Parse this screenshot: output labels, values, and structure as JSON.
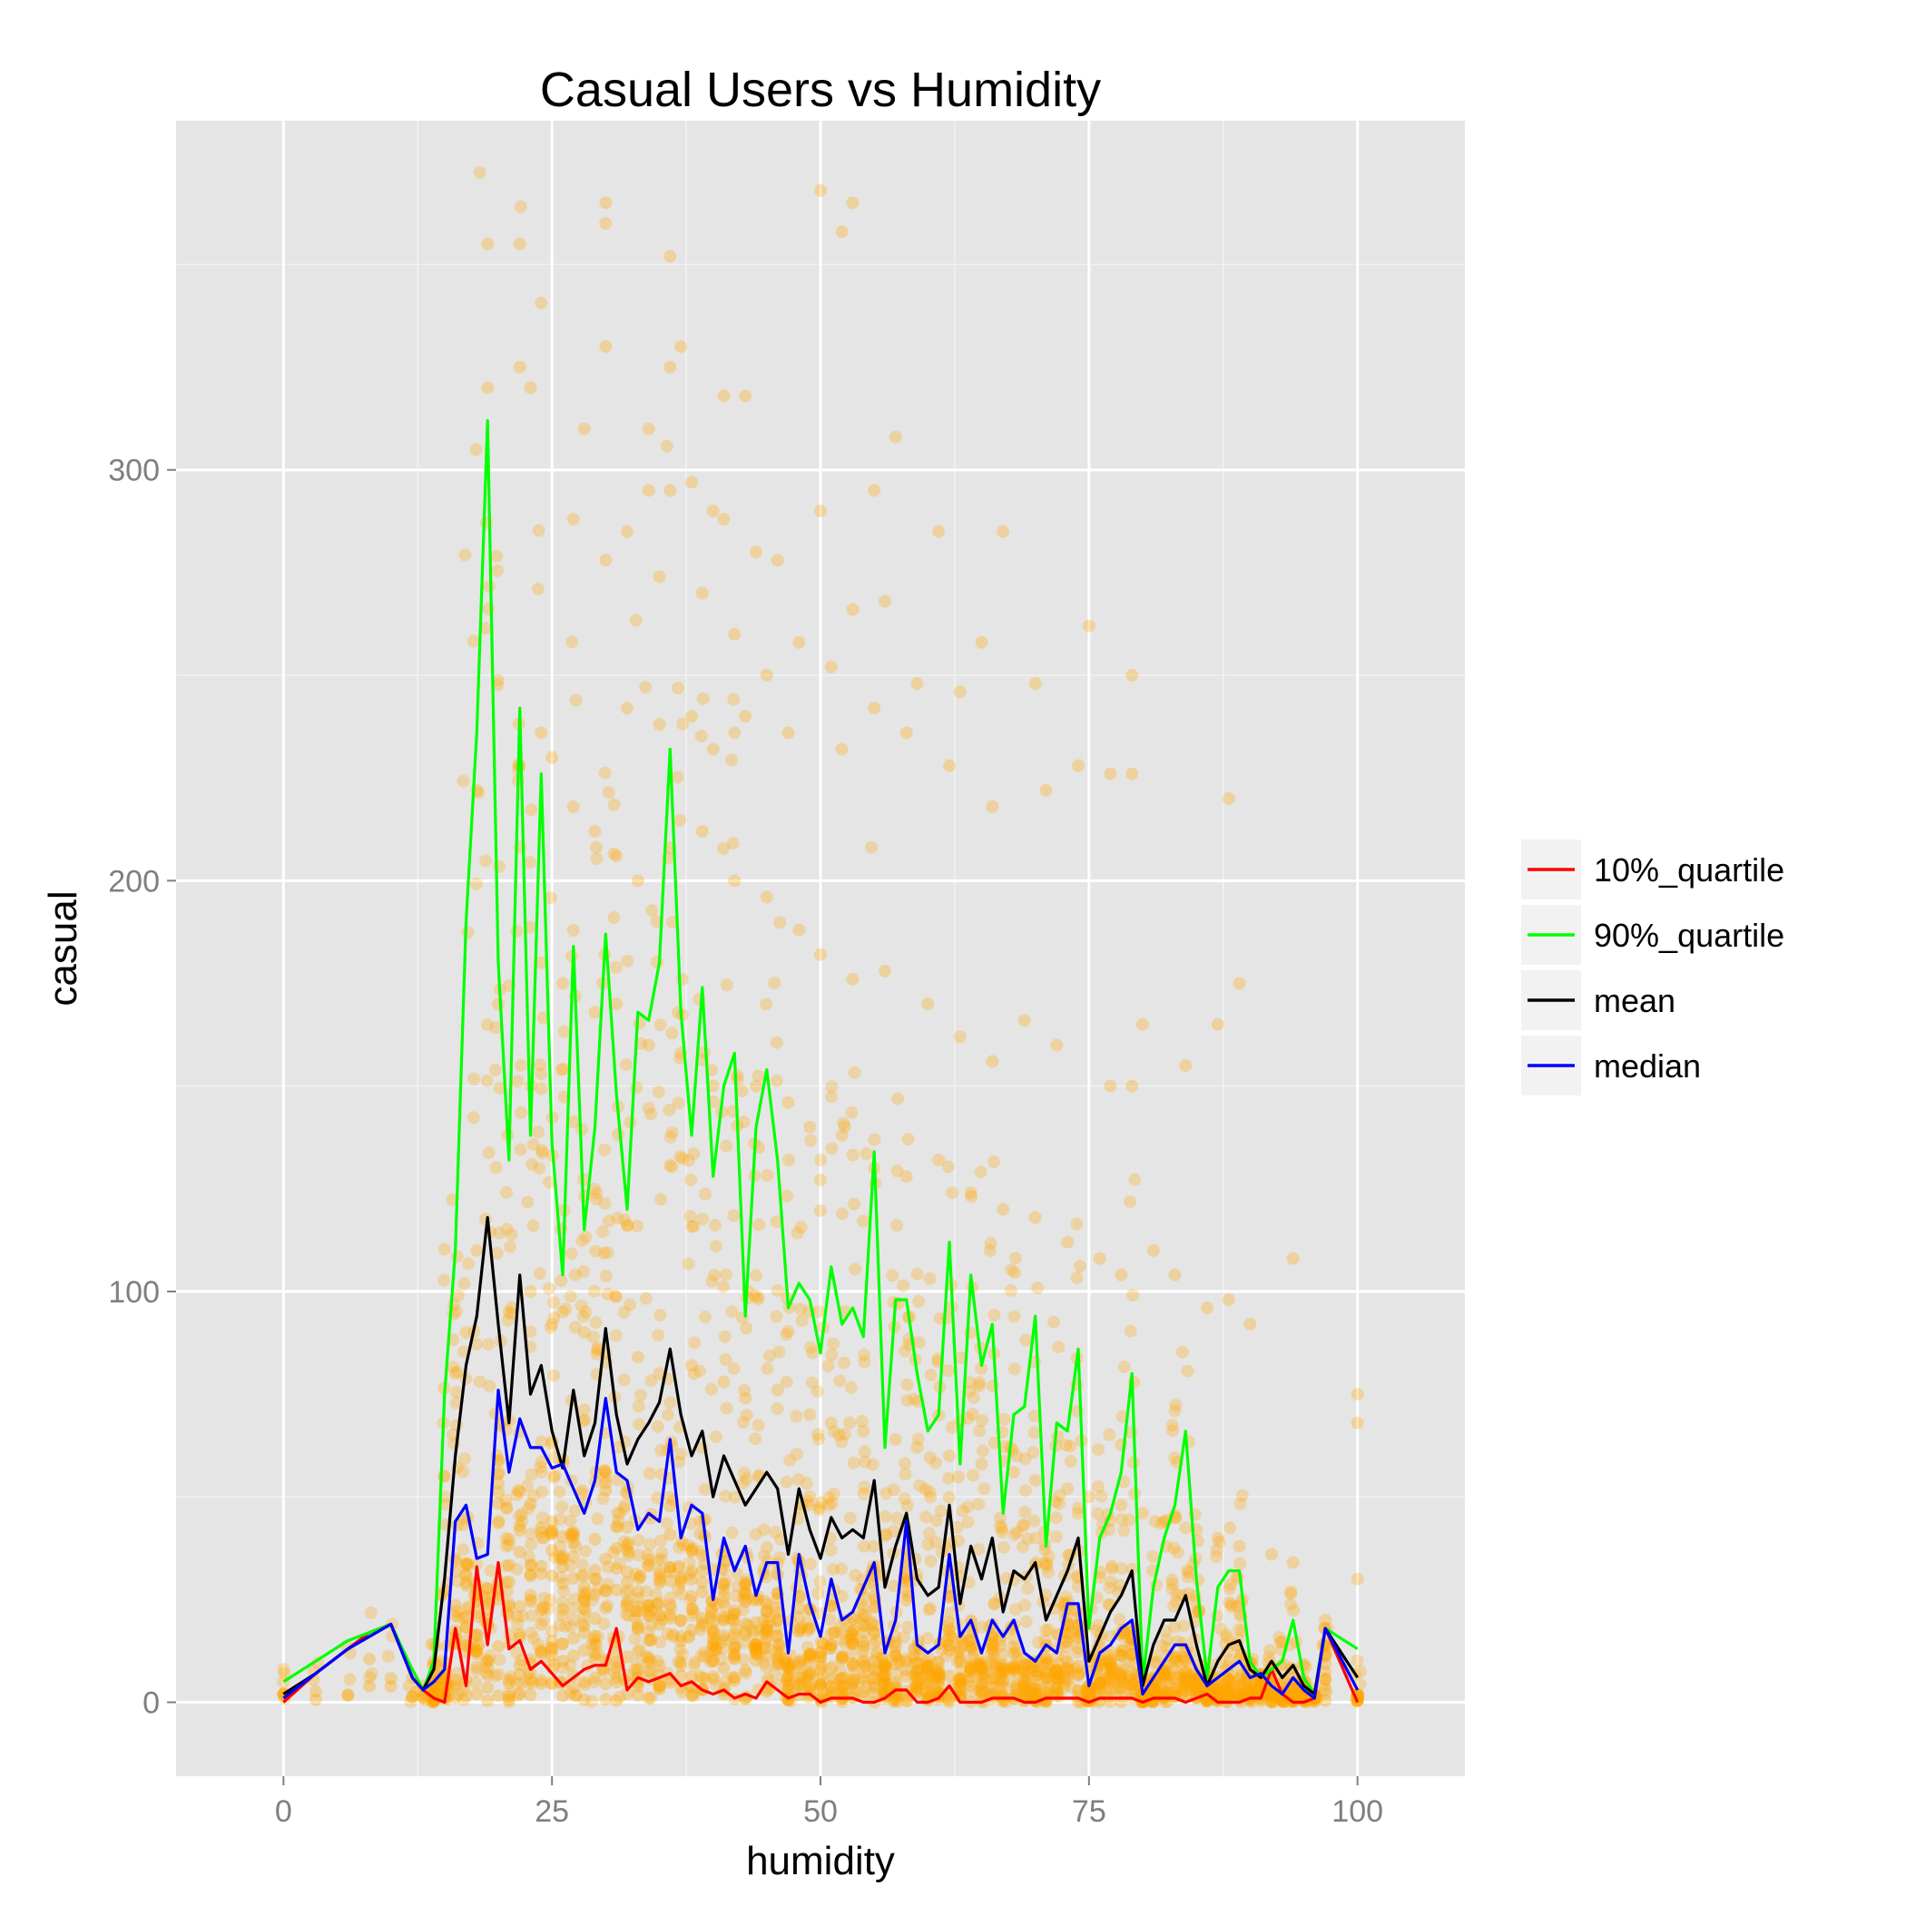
{
  "chart_data": {
    "type": "scatter",
    "title": "Casual Users vs Humidity",
    "xlabel": "humidity",
    "ylabel": "casual",
    "xlim": [
      -10,
      110
    ],
    "ylim": [
      -18,
      385
    ],
    "x_ticks": [
      0,
      25,
      50,
      75,
      100
    ],
    "y_ticks": [
      0,
      100,
      200,
      300
    ],
    "grid": true,
    "legend_position": "right",
    "scatter_color": "#FFA500",
    "scatter_note_points": [
      [
        19,
        355
      ],
      [
        22,
        355
      ],
      [
        30,
        365
      ],
      [
        30,
        360
      ],
      [
        36,
        352
      ],
      [
        50,
        368
      ],
      [
        52,
        358
      ],
      [
        53,
        365
      ],
      [
        22,
        325
      ],
      [
        23,
        320
      ],
      [
        28,
        310
      ],
      [
        30,
        330
      ],
      [
        34,
        310
      ],
      [
        36,
        325
      ],
      [
        37,
        330
      ],
      [
        41,
        318
      ],
      [
        43,
        318
      ],
      [
        57,
        308
      ],
      [
        30,
        278
      ],
      [
        32,
        285
      ],
      [
        34,
        295
      ],
      [
        36,
        295
      ],
      [
        38,
        297
      ],
      [
        40,
        290
      ],
      [
        41,
        288
      ],
      [
        44,
        280
      ],
      [
        46,
        278
      ],
      [
        50,
        290
      ],
      [
        55,
        295
      ],
      [
        61,
        285
      ],
      [
        67,
        285
      ],
      [
        19,
        320
      ],
      [
        27,
        288
      ],
      [
        35,
        274
      ],
      [
        39,
        270
      ],
      [
        42,
        260
      ],
      [
        45,
        250
      ],
      [
        48,
        258
      ],
      [
        51,
        252
      ],
      [
        53,
        266
      ],
      [
        56,
        268
      ],
      [
        59,
        248
      ],
      [
        63,
        246
      ],
      [
        65,
        258
      ],
      [
        70,
        248
      ],
      [
        75,
        262
      ],
      [
        79,
        250
      ],
      [
        32,
        242
      ],
      [
        35,
        238
      ],
      [
        38,
        240
      ],
      [
        40,
        232
      ],
      [
        43,
        240
      ],
      [
        47,
        236
      ],
      [
        52,
        232
      ],
      [
        55,
        242
      ],
      [
        58,
        236
      ],
      [
        62,
        228
      ],
      [
        66,
        218
      ],
      [
        71,
        222
      ],
      [
        74,
        228
      ],
      [
        77,
        226
      ],
      [
        79,
        226
      ],
      [
        18,
        222
      ],
      [
        22,
        228
      ],
      [
        24,
        236
      ],
      [
        25,
        230
      ],
      [
        27,
        218
      ],
      [
        29,
        212
      ],
      [
        31,
        206
      ],
      [
        33,
        200
      ],
      [
        36,
        208
      ],
      [
        39,
        212
      ],
      [
        42,
        200
      ],
      [
        45,
        196
      ],
      [
        48,
        188
      ],
      [
        50,
        182
      ],
      [
        53,
        176
      ],
      [
        56,
        178
      ],
      [
        60,
        170
      ],
      [
        63,
        162
      ],
      [
        66,
        156
      ],
      [
        69,
        166
      ],
      [
        72,
        160
      ],
      [
        77,
        150
      ],
      [
        79,
        150
      ],
      [
        80,
        165
      ],
      [
        84,
        155
      ],
      [
        87,
        165
      ],
      [
        88,
        220
      ],
      [
        89,
        175
      ],
      [
        20,
        170
      ],
      [
        24,
        180
      ],
      [
        26,
        175
      ],
      [
        29,
        168
      ],
      [
        31,
        170
      ],
      [
        34,
        160
      ],
      [
        37,
        158
      ],
      [
        40,
        150
      ],
      [
        44,
        150
      ],
      [
        47,
        146
      ],
      [
        49,
        140
      ],
      [
        52,
        138
      ],
      [
        55,
        130
      ],
      [
        58,
        128
      ],
      [
        61,
        132
      ],
      [
        64,
        124
      ],
      [
        67,
        120
      ],
      [
        70,
        118
      ],
      [
        73,
        112
      ],
      [
        76,
        108
      ],
      [
        78,
        104
      ],
      [
        81,
        110
      ],
      [
        83,
        104
      ],
      [
        86,
        96
      ],
      [
        88,
        98
      ],
      [
        90,
        92
      ],
      [
        94,
        108
      ],
      [
        14,
        10
      ],
      [
        15,
        55
      ],
      [
        16,
        80
      ],
      [
        17,
        90
      ],
      [
        18,
        110
      ],
      [
        21,
        95
      ],
      [
        23,
        100
      ],
      [
        26,
        95
      ],
      [
        28,
        90
      ],
      [
        30,
        85
      ],
      [
        33,
        84
      ],
      [
        35,
        80
      ],
      [
        38,
        82
      ],
      [
        41,
        78
      ],
      [
        43,
        74
      ],
      [
        46,
        76
      ],
      [
        49,
        70
      ],
      [
        51,
        68
      ],
      [
        54,
        66
      ],
      [
        57,
        64
      ],
      [
        59,
        62
      ],
      [
        62,
        60
      ],
      [
        65,
        58
      ],
      [
        68,
        56
      ],
      [
        70,
        54
      ],
      [
        73,
        52
      ],
      [
        75,
        50
      ],
      [
        78,
        48
      ],
      [
        80,
        46
      ],
      [
        82,
        44
      ],
      [
        85,
        42
      ],
      [
        87,
        40
      ],
      [
        89,
        38
      ],
      [
        92,
        36
      ],
      [
        94,
        34
      ],
      [
        97,
        20
      ],
      [
        100,
        75
      ],
      [
        100,
        68
      ],
      [
        100,
        30
      ],
      [
        0,
        5
      ],
      [
        0,
        8
      ],
      [
        0,
        2
      ],
      [
        12,
        6
      ],
      [
        13,
        4
      ],
      [
        92,
        5
      ],
      [
        95,
        2
      ],
      [
        96,
        3
      ]
    ],
    "x": [
      0,
      3,
      6,
      8,
      10,
      12,
      13,
      14,
      15,
      16,
      17,
      18,
      19,
      20,
      21,
      22,
      23,
      24,
      25,
      26,
      27,
      28,
      29,
      30,
      31,
      32,
      33,
      34,
      35,
      36,
      37,
      38,
      39,
      40,
      41,
      42,
      43,
      44,
      45,
      46,
      47,
      48,
      49,
      50,
      51,
      52,
      53,
      54,
      55,
      56,
      57,
      58,
      59,
      60,
      61,
      62,
      63,
      64,
      65,
      66,
      67,
      68,
      69,
      70,
      71,
      72,
      73,
      74,
      75,
      76,
      77,
      78,
      79,
      80,
      81,
      82,
      83,
      84,
      85,
      86,
      87,
      88,
      89,
      90,
      91,
      92,
      93,
      94,
      95,
      96,
      97,
      100
    ],
    "series": [
      {
        "name": "10%_quartile",
        "color": "#FF0000",
        "values": [
          0,
          7,
          13,
          17,
          19,
          6,
          3,
          1,
          0,
          18,
          4,
          33,
          14,
          34,
          13,
          15,
          8,
          10,
          7,
          4,
          6,
          8,
          9,
          9,
          18,
          3,
          6,
          5,
          6,
          7,
          4,
          5,
          3,
          2,
          3,
          1,
          2,
          1,
          5,
          3,
          1,
          2,
          2,
          0,
          1,
          1,
          1,
          0,
          0,
          1,
          3,
          3,
          0,
          0,
          1,
          4,
          0,
          0,
          0,
          1,
          1,
          1,
          0,
          0,
          1,
          1,
          1,
          1,
          0,
          1,
          1,
          1,
          1,
          0,
          1,
          1,
          1,
          0,
          1,
          2,
          0,
          0,
          0,
          1,
          1,
          8,
          2,
          0,
          0,
          1,
          18,
          0
        ]
      },
      {
        "name": "90%_quartile",
        "color": "#00FF00",
        "values": [
          5,
          10,
          15,
          17,
          19,
          8,
          3,
          10,
          75,
          110,
          190,
          236,
          312,
          180,
          132,
          242,
          138,
          226,
          136,
          104,
          184,
          115,
          140,
          187,
          148,
          120,
          168,
          166,
          180,
          232,
          168,
          138,
          174,
          128,
          150,
          158,
          94,
          140,
          154,
          132,
          96,
          102,
          98,
          85,
          106,
          92,
          96,
          89,
          134,
          62,
          98,
          98,
          80,
          66,
          70,
          112,
          58,
          104,
          82,
          92,
          46,
          70,
          72,
          94,
          38,
          68,
          66,
          86,
          18,
          40,
          46,
          56,
          80,
          5,
          28,
          40,
          48,
          66,
          30,
          6,
          28,
          32,
          32,
          10,
          6,
          8,
          10,
          20,
          6,
          2,
          18,
          13
        ]
      },
      {
        "name": "mean",
        "color": "#000000",
        "values": [
          2,
          7,
          13,
          16,
          19,
          6,
          3,
          8,
          30,
          60,
          82,
          94,
          118,
          92,
          68,
          104,
          75,
          82,
          66,
          57,
          76,
          60,
          68,
          91,
          70,
          58,
          64,
          68,
          73,
          86,
          70,
          60,
          66,
          50,
          60,
          54,
          48,
          52,
          56,
          52,
          36,
          52,
          42,
          35,
          45,
          40,
          42,
          40,
          54,
          28,
          38,
          46,
          30,
          26,
          28,
          48,
          24,
          38,
          30,
          40,
          22,
          32,
          30,
          34,
          20,
          26,
          32,
          40,
          10,
          16,
          22,
          26,
          32,
          4,
          14,
          20,
          20,
          26,
          14,
          4,
          10,
          14,
          15,
          8,
          6,
          10,
          6,
          9,
          4,
          2,
          18,
          6
        ]
      },
      {
        "name": "median",
        "color": "#0000FF",
        "values": [
          1,
          7,
          13,
          16,
          19,
          6,
          3,
          5,
          8,
          44,
          48,
          35,
          36,
          76,
          56,
          69,
          62,
          62,
          57,
          58,
          52,
          46,
          54,
          74,
          56,
          54,
          42,
          46,
          44,
          64,
          40,
          48,
          46,
          25,
          40,
          32,
          38,
          26,
          34,
          34,
          12,
          36,
          24,
          16,
          30,
          20,
          22,
          28,
          34,
          12,
          20,
          44,
          14,
          12,
          14,
          36,
          16,
          20,
          12,
          20,
          16,
          20,
          12,
          10,
          14,
          12,
          24,
          24,
          4,
          12,
          14,
          18,
          20,
          2,
          6,
          10,
          14,
          14,
          8,
          4,
          6,
          8,
          10,
          6,
          7,
          4,
          2,
          6,
          3,
          1,
          18,
          3
        ]
      }
    ]
  }
}
